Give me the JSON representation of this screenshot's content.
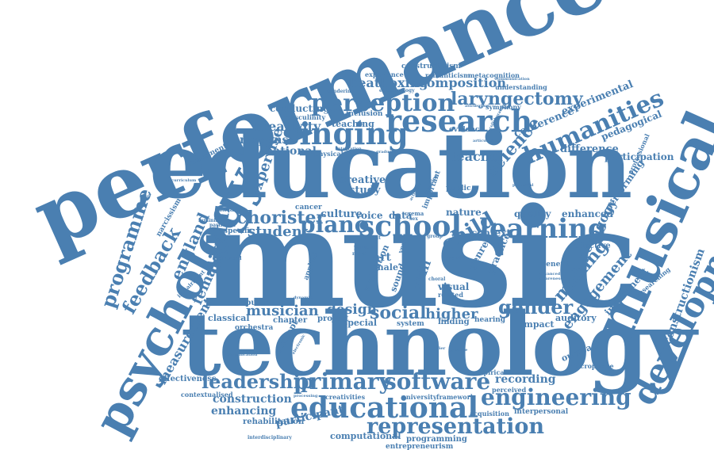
{
  "cloud": {
    "color": "#4a7fb1",
    "words": {
      "performance": "performance",
      "education": "education",
      "music": "music",
      "technology": "technology",
      "musical": "musical",
      "psychology": "psychology",
      "development": "development",
      "singing": "singing",
      "research": "research",
      "perception": "perception",
      "school": "school",
      "learning": "learning",
      "humanities": "humanities",
      "laryngectomy": "laryngectomy",
      "composition": "composition",
      "beatboxing": "beatboxing",
      "educational": "educational",
      "representation": "representation",
      "engineering": "engineering",
      "software": "software",
      "primary": "primary",
      "leadership": "leadership",
      "construction": "construction",
      "enhancing": "enhancing",
      "participant": "participant",
      "rehabilitation": "rehabilitation",
      "computational": "computational",
      "programming": "programming",
      "entrepreneurism": "entrepreneurism",
      "gender": "gender",
      "social": "social",
      "higher": "higher",
      "design": "design",
      "musician": "musician",
      "classical": "classical",
      "piano": "piano",
      "chorister": "chorister",
      "student": "student",
      "child": "child",
      "digital": "digital",
      "female": "female",
      "feedback": "feedback",
      "england": "england",
      "programme": "programme",
      "measurement": "measurement",
      "expertise": "expertise",
      "creativity": "creativity",
      "national": "national",
      "response": "response",
      "conducting": "conducting",
      "teaching": "teaching",
      "science": "science",
      "teacher": "teacher",
      "conference": "conference",
      "experimental": "experimental",
      "difference": "difference",
      "participation": "participation",
      "pedagogical": "pedagogical",
      "pedagogy": "pedagogy",
      "engagement": "engagement",
      "making": "making",
      "constructionism": "constructionism",
      "instrument": "instrument",
      "performing": "performing",
      "enhanced": "enhanced",
      "quality": "quality",
      "impact": "impact",
      "auditory": "auditory",
      "outreach": "outreach",
      "recording": "recording",
      "constructivism": "constructivism",
      "experience": "experience",
      "romanticism": "romanticism",
      "metacognition": "metacognition",
      "understanding": "understanding",
      "symphony": "symphony",
      "assessment": "assessment",
      "creative": "creative",
      "study": "study",
      "culture": "culture",
      "voice": "voice",
      "art": "art",
      "male": "male",
      "data": "data",
      "context": "context",
      "nature": "nature",
      "skill": "skill",
      "visual": "visual",
      "related": "related",
      "evaluation": "evaluation",
      "project": "project",
      "special": "special",
      "system": "system",
      "finding": "finding",
      "chapter": "chapter",
      "computer": "computer",
      "orchestra": "orchestra",
      "concept": "concept",
      "effectiveness": "effectiveness",
      "contextualised": "contextualised",
      "creativities": "creativities",
      "university": "university",
      "framework": "framework",
      "empirical": "empirical",
      "perceived": "perceived",
      "interpersonal": "interpersonal",
      "acquisition": "acquisition",
      "microphone": "microphone",
      "professional": "professional",
      "researching": "researching",
      "effective": "effective",
      "benefit": "benefit",
      "practice": "practice",
      "genre": "genre",
      "inclusion": "inclusion",
      "masculinity": "masculinity",
      "epistemology": "epistemology",
      "gendering": "gendering",
      "evidence": "evidence",
      "cancer": "cancer",
      "specific": "specific",
      "sound": "sound",
      "hearing": "hearing",
      "applied": "applied",
      "physical": "physical",
      "public": "public",
      "important": "important",
      "narcissism": "narcissism",
      "curriculum": "curriculum",
      "feminist": "feminist",
      "particular": "particular",
      "orchestral": "orchestral",
      "impairment": "impairment",
      "group": "group",
      "person": "person",
      "world": "world",
      "communication": "communication",
      "approaches": "approaches",
      "attribution": "attribution",
      "interdisciplinary": "interdisciplinary",
      "workshop": "workshop",
      "articulation": "articulation",
      "collaboration": "collaboration",
      "awareness": "awareness",
      "advanced": "advanced",
      "parochial": "parochial",
      "graduated": "graduated",
      "integration": "integration",
      "crema": "crema",
      "meaning": "meaning",
      "activities": "activities",
      "dynamic": "dynamic",
      "year": "year",
      "choral": "choral",
      "amplifier": "amplifier",
      "processing": "processing",
      "electronic": "electronic",
      "gesture": "gesture",
      "latent": "latent",
      "more": "more",
      "simplification": "simplification",
      "leader": "leader",
      "sex": "sex"
    }
  }
}
